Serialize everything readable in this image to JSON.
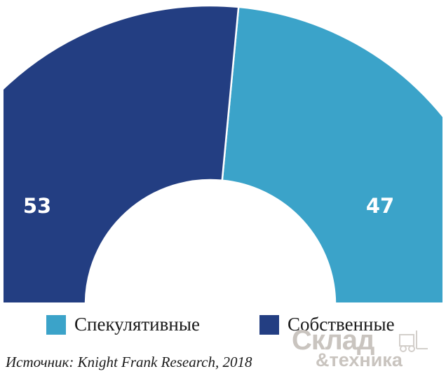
{
  "chart_data": {
    "type": "pie",
    "subtype": "semi-donut",
    "categories": [
      "Спекулятивные",
      "Собственные"
    ],
    "values": [
      47,
      53
    ],
    "colors": [
      "#3ba3c9",
      "#233e82"
    ],
    "data_labels": [
      "47",
      "53"
    ],
    "legend_position": "bottom"
  },
  "legend": {
    "items": [
      {
        "label": "Спекулятивные",
        "color": "#3ba3c9"
      },
      {
        "label": "Собственные",
        "color": "#233e82"
      }
    ]
  },
  "source": "Источник: Knight Frank Research, 2018",
  "watermark": {
    "line1": "Склад",
    "line2": "&техника"
  }
}
